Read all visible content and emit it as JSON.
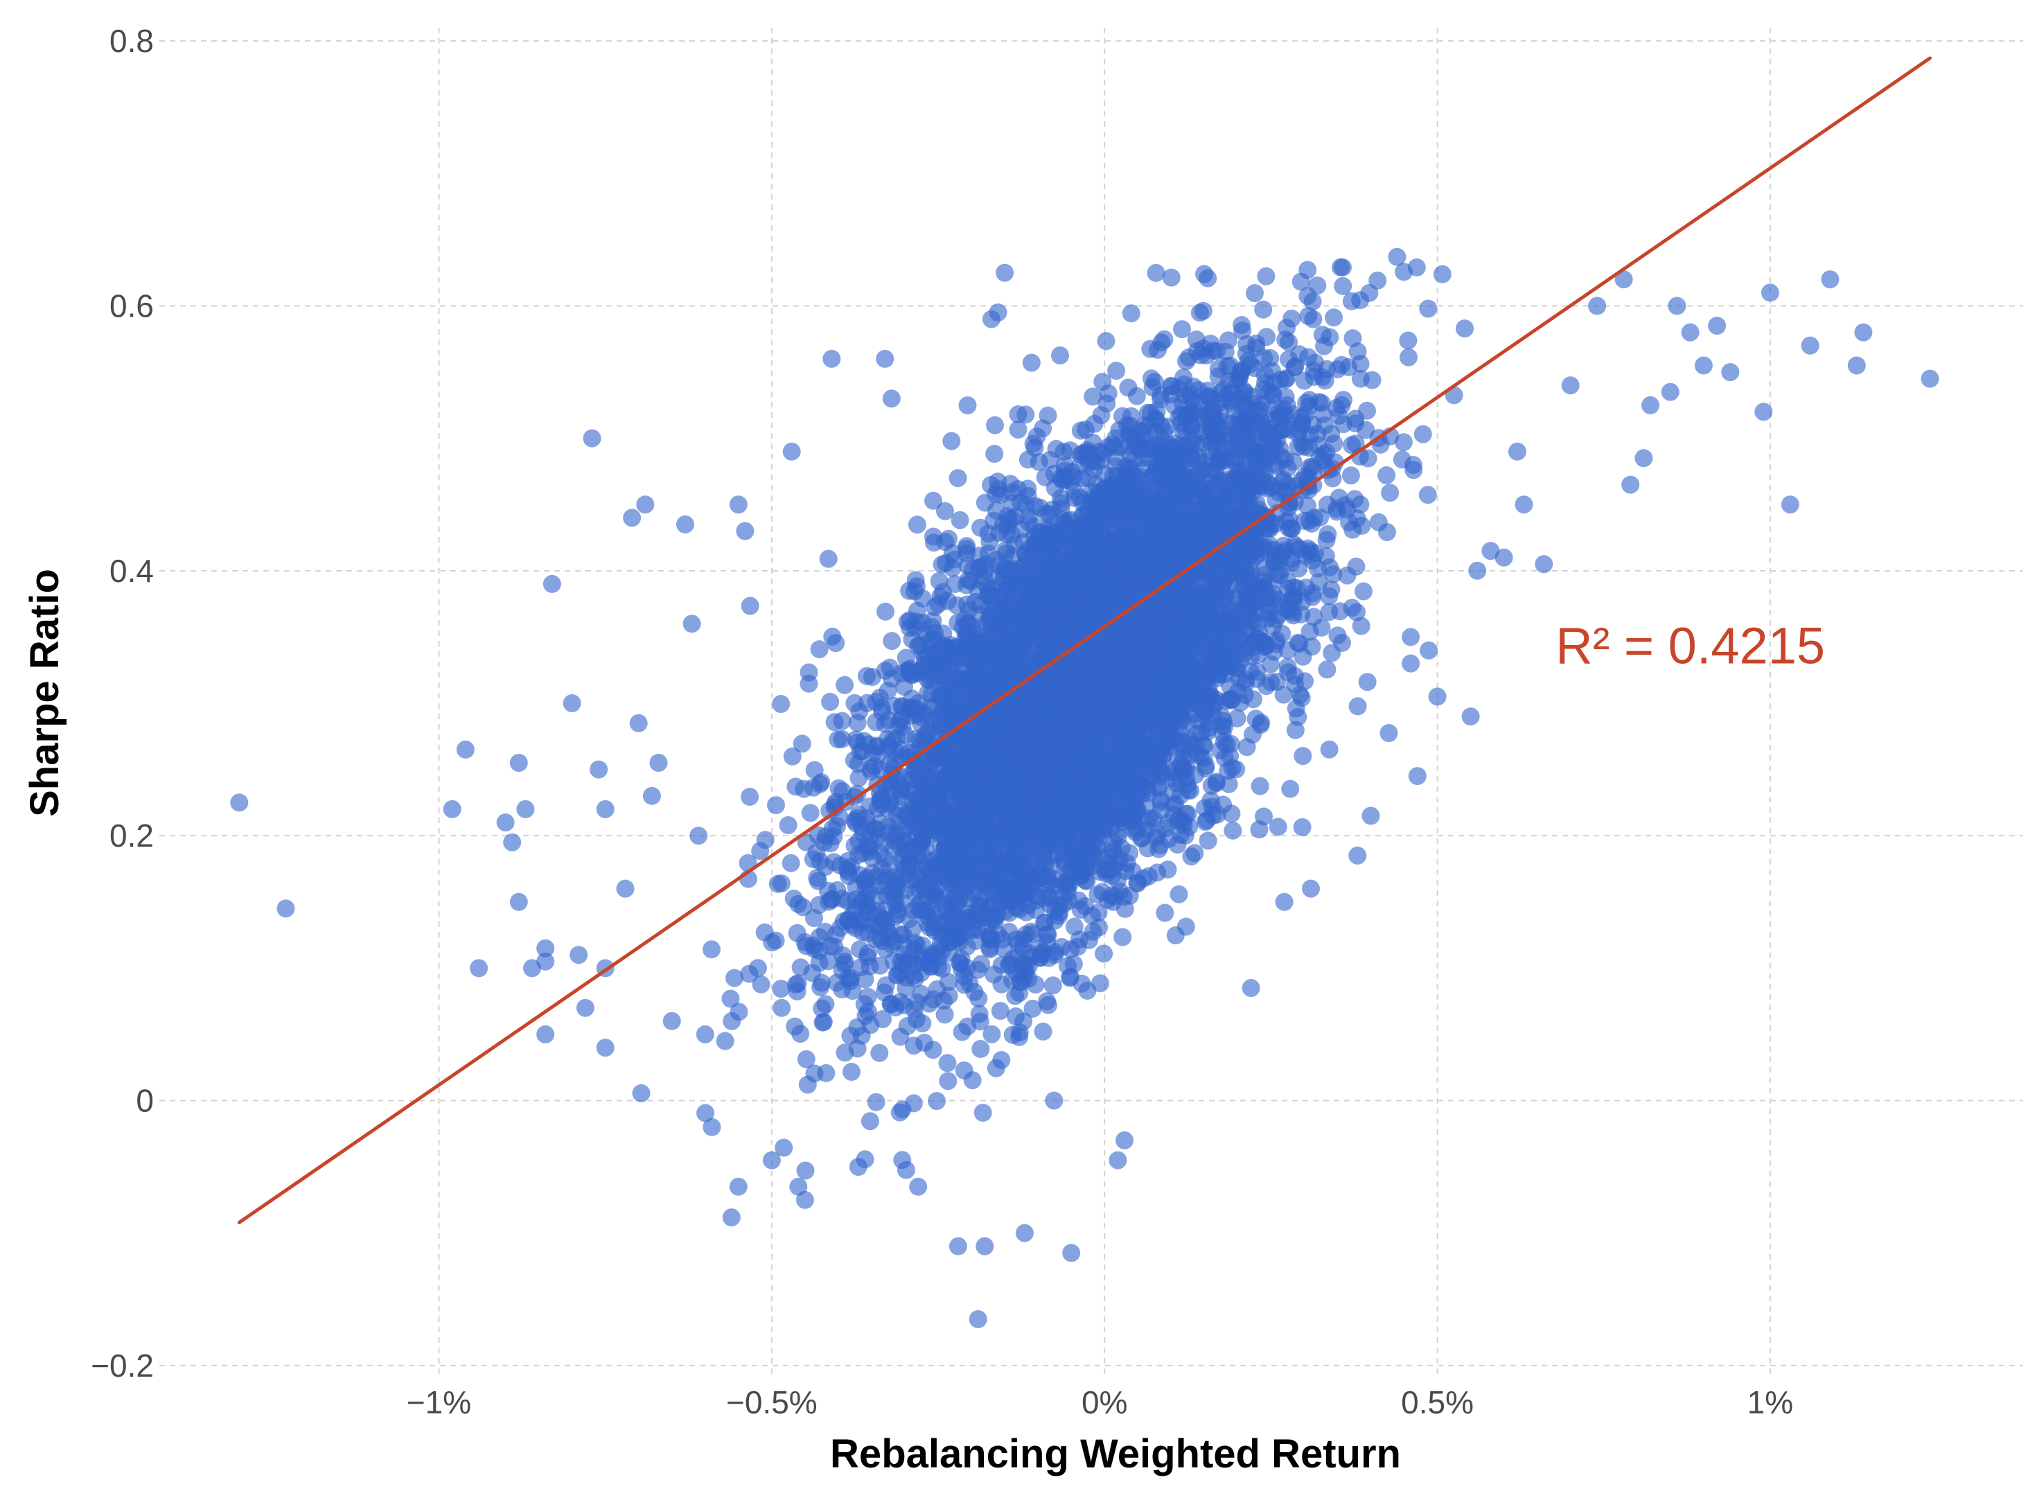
{
  "chart_data": {
    "type": "scatter",
    "title": "",
    "xlabel": "Rebalancing Weighted Return",
    "ylabel": "Sharpe Ratio",
    "xlim": [
      -1.42,
      1.38
    ],
    "ylim": [
      -0.21,
      0.81
    ],
    "x_ticks": [
      -1,
      -0.5,
      0,
      0.5,
      1
    ],
    "x_tick_labels": [
      "−1%",
      "−0.5%",
      "0%",
      "0.5%",
      "1%"
    ],
    "y_ticks": [
      -0.2,
      0,
      0.2,
      0.4,
      0.6,
      0.8
    ],
    "y_tick_labels": [
      "−0.2",
      "0",
      "0.2",
      "0.4",
      "0.6",
      "0.8"
    ],
    "grid": true,
    "point_color": "#3366cc",
    "point_opacity": 0.6,
    "cloud": {
      "description": "dense cluster of several thousand simulated points",
      "center_x": -0.03,
      "center_y": 0.32,
      "sd_x": 0.17,
      "sd_y": 0.11,
      "correlation": 0.65,
      "n": 6500
    },
    "series": [
      {
        "name": "outliers",
        "points": [
          [
            -1.3,
            0.225
          ],
          [
            -1.23,
            0.145
          ],
          [
            -0.96,
            0.265
          ],
          [
            -0.98,
            0.22
          ],
          [
            -0.94,
            0.1
          ],
          [
            -0.9,
            0.21
          ],
          [
            -0.89,
            0.195
          ],
          [
            -0.88,
            0.255
          ],
          [
            -0.87,
            0.22
          ],
          [
            -0.88,
            0.15
          ],
          [
            -0.86,
            0.1
          ],
          [
            -0.83,
            0.39
          ],
          [
            -0.84,
            0.105
          ],
          [
            -0.84,
            0.115
          ],
          [
            -0.84,
            0.05
          ],
          [
            -0.8,
            0.3
          ],
          [
            -0.79,
            0.11
          ],
          [
            -0.78,
            0.07
          ],
          [
            -0.77,
            0.5
          ],
          [
            -0.76,
            0.25
          ],
          [
            -0.75,
            0.22
          ],
          [
            -0.75,
            0.1
          ],
          [
            -0.75,
            0.04
          ],
          [
            -0.72,
            0.16
          ],
          [
            -0.71,
            0.44
          ],
          [
            -0.7,
            0.285
          ],
          [
            -0.69,
            0.45
          ],
          [
            -0.68,
            0.23
          ],
          [
            -0.67,
            0.255
          ],
          [
            -0.65,
            0.06
          ],
          [
            -0.63,
            0.435
          ],
          [
            -0.62,
            0.36
          ],
          [
            -0.61,
            0.2
          ],
          [
            -0.6,
            0.05
          ],
          [
            -0.59,
            -0.02
          ],
          [
            -0.57,
            0.045
          ],
          [
            -0.56,
            0.06
          ],
          [
            -0.55,
            0.45
          ],
          [
            -0.54,
            0.43
          ],
          [
            -0.55,
            -0.065
          ],
          [
            -0.5,
            -0.045
          ],
          [
            -0.47,
            0.49
          ],
          [
            -0.46,
            -0.065
          ],
          [
            -0.45,
            -0.075
          ],
          [
            -0.41,
            0.56
          ],
          [
            -0.37,
            -0.05
          ],
          [
            -0.33,
            0.56
          ],
          [
            -0.32,
            0.53
          ],
          [
            -0.28,
            -0.065
          ],
          [
            -0.22,
            -0.11
          ],
          [
            -0.19,
            -0.165
          ],
          [
            -0.18,
            -0.11
          ],
          [
            -0.17,
            0.59
          ],
          [
            -0.16,
            0.595
          ],
          [
            -0.15,
            0.625
          ],
          [
            -0.12,
            -0.1
          ],
          [
            -0.05,
            -0.115
          ],
          [
            0.03,
            -0.03
          ],
          [
            0.02,
            -0.045
          ],
          [
            0.22,
            0.085
          ],
          [
            0.27,
            0.15
          ],
          [
            0.31,
            0.16
          ],
          [
            0.38,
            0.185
          ],
          [
            0.4,
            0.215
          ],
          [
            0.46,
            0.35
          ],
          [
            0.46,
            0.33
          ],
          [
            0.47,
            0.245
          ],
          [
            0.5,
            0.305
          ],
          [
            0.55,
            0.29
          ],
          [
            0.56,
            0.4
          ],
          [
            0.58,
            0.415
          ],
          [
            0.6,
            0.41
          ],
          [
            0.62,
            0.49
          ],
          [
            0.63,
            0.45
          ],
          [
            0.66,
            0.405
          ],
          [
            0.7,
            0.54
          ],
          [
            0.74,
            0.6
          ],
          [
            0.78,
            0.62
          ],
          [
            0.79,
            0.465
          ],
          [
            0.81,
            0.485
          ],
          [
            0.82,
            0.525
          ],
          [
            0.85,
            0.535
          ],
          [
            0.86,
            0.6
          ],
          [
            0.88,
            0.58
          ],
          [
            0.9,
            0.555
          ],
          [
            0.92,
            0.585
          ],
          [
            0.94,
            0.55
          ],
          [
            0.99,
            0.52
          ],
          [
            1.0,
            0.61
          ],
          [
            1.03,
            0.45
          ],
          [
            1.06,
            0.57
          ],
          [
            1.09,
            0.62
          ],
          [
            1.13,
            0.555
          ],
          [
            1.14,
            0.58
          ],
          [
            1.24,
            0.545
          ]
        ]
      }
    ],
    "fit": {
      "type": "linear",
      "x": [
        -1.3,
        1.24
      ],
      "y": [
        -0.092,
        0.787
      ],
      "color": "#c8452a"
    },
    "annotations": [
      {
        "text": "R² = 0.4215",
        "x": 0.88,
        "y": 0.33,
        "color": "#c8452a"
      }
    ]
  }
}
